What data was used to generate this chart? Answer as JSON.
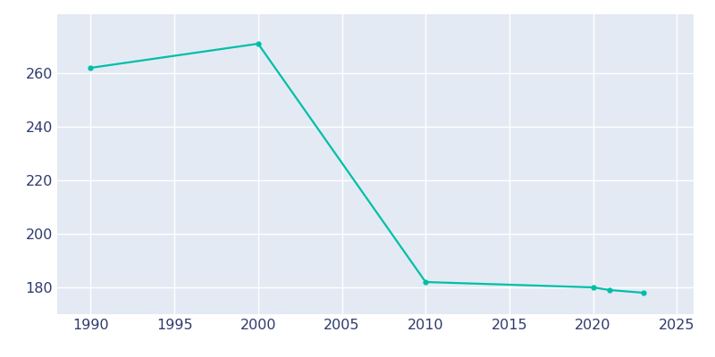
{
  "years": [
    1990,
    2000,
    2010,
    2020,
    2021,
    2023
  ],
  "population": [
    262,
    271,
    182,
    180,
    179,
    178
  ],
  "line_color": "#00BFA8",
  "marker": "o",
  "marker_size": 3.5,
  "line_width": 1.6,
  "plot_bg_color": "#E3EAF3",
  "fig_bg_color": "#FFFFFF",
  "grid_color": "#FFFFFF",
  "xlim": [
    1988,
    2026
  ],
  "ylim": [
    170,
    282
  ],
  "yticks": [
    180,
    200,
    220,
    240,
    260
  ],
  "xticks": [
    1990,
    1995,
    2000,
    2005,
    2010,
    2015,
    2020,
    2025
  ],
  "tick_color": "#2E3A6E",
  "tick_fontsize": 11.5
}
